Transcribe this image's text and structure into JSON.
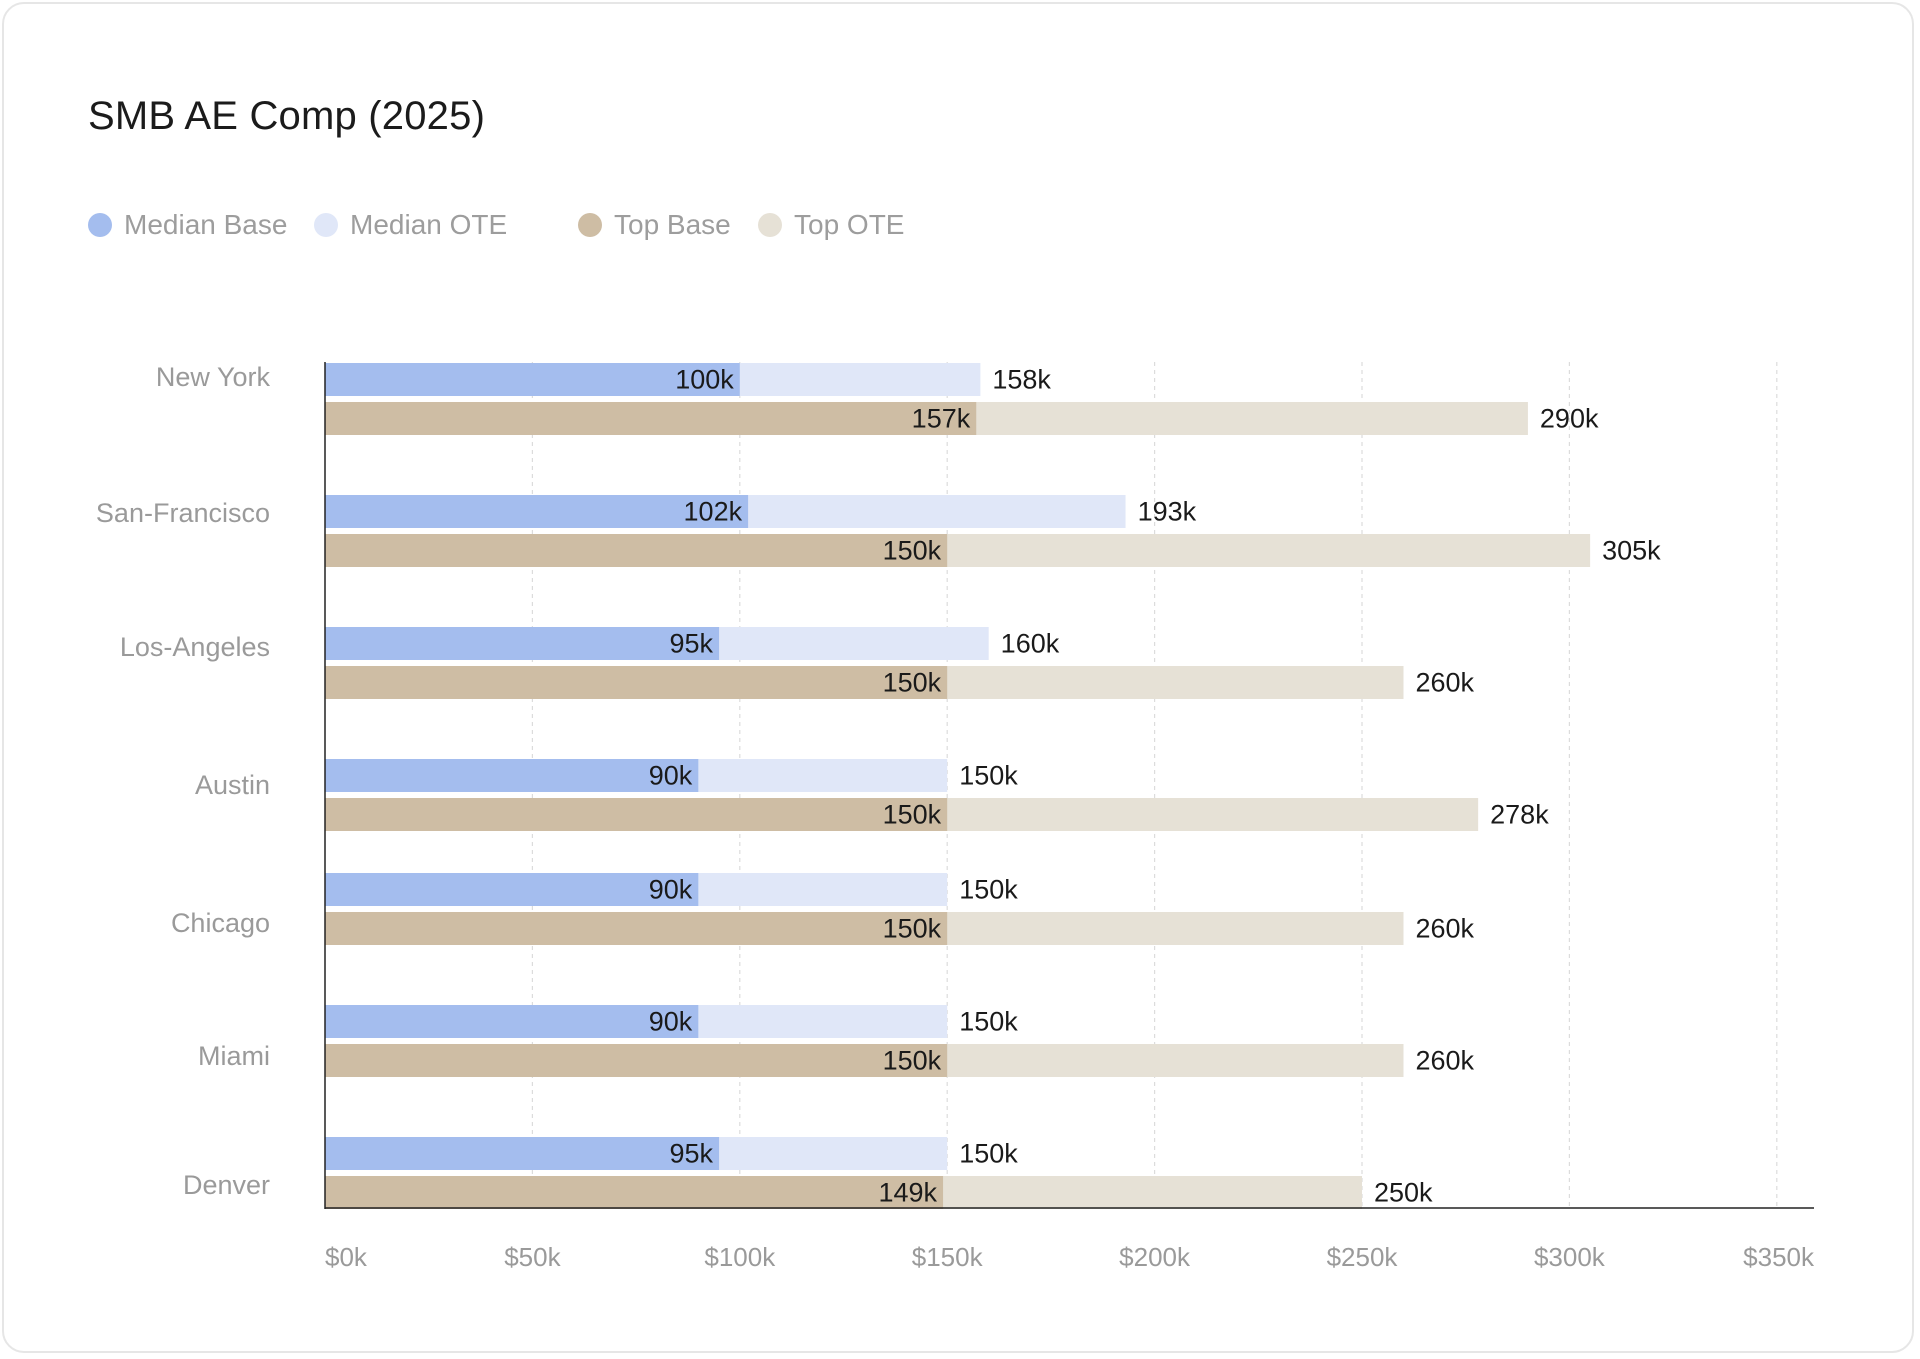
{
  "title": "SMB AE Comp (2025)",
  "legend": [
    {
      "label": "Median Base",
      "color": "#a4bdee"
    },
    {
      "label": "Median OTE",
      "color": "#e0e7f8"
    },
    {
      "label": "Top Base",
      "color": "#cebda4"
    },
    {
      "label": "Top OTE",
      "color": "#e6e1d6"
    }
  ],
  "chart_data": {
    "type": "bar",
    "orientation": "horizontal",
    "title": "SMB AE Comp (2025)",
    "categories": [
      "New York",
      "San-Francisco",
      "Los-Angeles",
      "Austin",
      "Chicago",
      "Miami",
      "Denver"
    ],
    "series": [
      {
        "name": "Median Base",
        "color": "#a4bdee",
        "values": [
          100,
          102,
          95,
          90,
          90,
          90,
          95
        ],
        "labels": [
          "100k",
          "102k",
          "95k",
          "90k",
          "90k",
          "90k",
          "95k"
        ]
      },
      {
        "name": "Median OTE",
        "color": "#e0e7f8",
        "values": [
          158,
          193,
          160,
          150,
          150,
          150,
          150
        ],
        "labels": [
          "158k",
          "193k",
          "160k",
          "150k",
          "150k",
          "150k",
          "150k"
        ]
      },
      {
        "name": "Top Base",
        "color": "#cebda4",
        "values": [
          157,
          150,
          150,
          150,
          150,
          150,
          149
        ],
        "labels": [
          "157k",
          "150k",
          "150k",
          "150k",
          "150k",
          "150k",
          "149k"
        ]
      },
      {
        "name": "Top OTE",
        "color": "#e6e1d6",
        "values": [
          290,
          305,
          260,
          278,
          260,
          260,
          250
        ],
        "labels": [
          "290k",
          "305k",
          "260k",
          "278k",
          "260k",
          "260k",
          "250k"
        ]
      }
    ],
    "x_ticks": [
      0,
      50,
      100,
      150,
      200,
      250,
      300,
      350
    ],
    "x_tick_labels": [
      "$0k",
      "$50k",
      "$100k",
      "$150k",
      "$200k",
      "$250k",
      "$300k",
      "$350k"
    ],
    "xlim": [
      0,
      350
    ],
    "grid": "vertical dashed",
    "legend_position": "top-left"
  }
}
